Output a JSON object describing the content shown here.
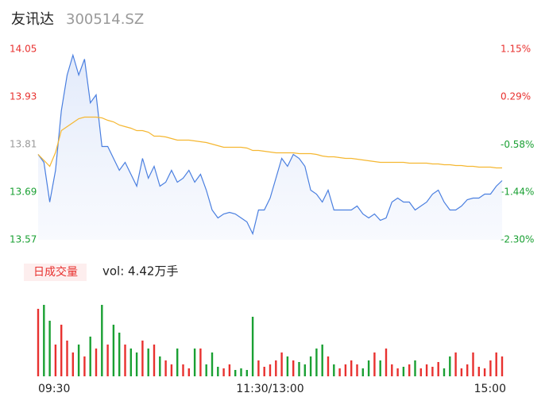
{
  "chart_data": [
    {
      "type": "line",
      "title": "友讯达",
      "subtitle": "300514.SZ",
      "x": [
        0,
        3,
        6,
        9,
        12,
        15,
        18,
        21,
        24,
        27,
        30,
        33,
        36,
        39,
        42,
        45,
        48,
        51,
        54,
        57,
        60,
        63,
        66,
        69,
        72,
        75,
        78,
        81,
        84,
        87,
        90,
        93,
        96,
        99,
        102,
        105,
        108,
        111,
        114,
        117,
        120,
        123,
        126,
        129,
        132,
        135,
        138,
        141,
        144,
        147,
        150,
        153,
        156,
        159,
        162,
        165,
        168,
        171,
        174,
        177,
        180,
        183,
        186,
        189,
        192,
        195,
        198,
        201,
        204,
        207,
        210,
        213,
        216,
        219,
        222,
        225,
        228,
        231,
        234,
        237,
        240
      ],
      "xlim": [
        0,
        240
      ],
      "ylim": [
        13.57,
        14.05
      ],
      "yticks": [
        13.57,
        13.69,
        13.81,
        13.93,
        14.05
      ],
      "y2lim": [
        -2.3,
        1.15
      ],
      "y2ticks": [
        {
          "value": -2.3,
          "label": "-2.30%"
        },
        {
          "value": -1.44,
          "label": "-1.44%"
        },
        {
          "value": -0.58,
          "label": "-0.58%"
        },
        {
          "value": 0.29,
          "label": "0.29%"
        },
        {
          "value": 1.15,
          "label": "1.15%"
        }
      ],
      "up_color": "#e8312f",
      "down_color": "#1aa033",
      "flat_color": "#999999",
      "series": [
        {
          "color": "#4a7fe0",
          "values": [
            13.785,
            13.765,
            13.665,
            13.745,
            13.895,
            13.985,
            14.035,
            13.985,
            14.025,
            13.915,
            13.935,
            13.805,
            13.805,
            13.775,
            13.745,
            13.765,
            13.735,
            13.705,
            13.775,
            13.725,
            13.755,
            13.705,
            13.715,
            13.745,
            13.715,
            13.725,
            13.745,
            13.715,
            13.735,
            13.695,
            13.645,
            13.625,
            13.635,
            13.639,
            13.635,
            13.625,
            13.615,
            13.585,
            13.645,
            13.645,
            13.675,
            13.725,
            13.775,
            13.755,
            13.785,
            13.775,
            13.755,
            13.695,
            13.685,
            13.665,
            13.695,
            13.645,
            13.645,
            13.645,
            13.645,
            13.655,
            13.635,
            13.625,
            13.635,
            13.619,
            13.625,
            13.665,
            13.675,
            13.665,
            13.665,
            13.645,
            13.655,
            13.665,
            13.685,
            13.695,
            13.665,
            13.645,
            13.645,
            13.655,
            13.671,
            13.675,
            13.675,
            13.685,
            13.685,
            13.705,
            13.719
          ]
        },
        {
          "color": "#f5b731",
          "values": [
            13.785,
            13.77,
            13.755,
            13.79,
            13.845,
            13.855,
            13.865,
            13.875,
            13.879,
            13.879,
            13.879,
            13.877,
            13.871,
            13.867,
            13.859,
            13.855,
            13.851,
            13.845,
            13.845,
            13.841,
            13.831,
            13.831,
            13.829,
            13.825,
            13.821,
            13.821,
            13.821,
            13.819,
            13.817,
            13.815,
            13.811,
            13.807,
            13.803,
            13.803,
            13.803,
            13.803,
            13.801,
            13.795,
            13.795,
            13.793,
            13.791,
            13.789,
            13.789,
            13.789,
            13.789,
            13.787,
            13.787,
            13.787,
            13.785,
            13.781,
            13.779,
            13.779,
            13.777,
            13.775,
            13.775,
            13.773,
            13.771,
            13.769,
            13.767,
            13.765,
            13.765,
            13.765,
            13.765,
            13.765,
            13.763,
            13.763,
            13.763,
            13.763,
            13.761,
            13.761,
            13.759,
            13.759,
            13.757,
            13.757,
            13.755,
            13.755,
            13.753,
            13.753,
            13.753,
            13.751,
            13.751
          ]
        }
      ]
    },
    {
      "type": "bar",
      "title": "日成交量",
      "annotation": "vol: 4.42万手",
      "x": [
        0,
        3,
        6,
        9,
        12,
        15,
        18,
        21,
        24,
        27,
        30,
        33,
        36,
        39,
        42,
        45,
        48,
        51,
        54,
        57,
        60,
        63,
        66,
        69,
        72,
        75,
        78,
        81,
        84,
        87,
        90,
        93,
        96,
        99,
        102,
        105,
        108,
        111,
        114,
        117,
        120,
        123,
        126,
        129,
        132,
        135,
        138,
        141,
        144,
        147,
        150,
        153,
        156,
        159,
        162,
        165,
        168,
        171,
        174,
        177,
        180,
        183,
        186,
        189,
        192,
        195,
        198,
        201,
        204,
        207,
        210,
        213,
        216,
        219,
        222,
        225,
        228,
        231,
        234,
        237,
        240
      ],
      "xlim": [
        0,
        240
      ],
      "xticks": [
        {
          "value": 0,
          "label": "09:30"
        },
        {
          "value": 120,
          "label": "11:30/13:00"
        },
        {
          "value": 240,
          "label": "15:00"
        }
      ],
      "ylim": [
        0,
        1000
      ],
      "up_color": "#e8312f",
      "down_color": "#1aa033",
      "values": [
        850,
        900,
        700,
        400,
        650,
        450,
        300,
        400,
        250,
        500,
        350,
        900,
        400,
        650,
        550,
        400,
        350,
        300,
        450,
        350,
        400,
        250,
        200,
        150,
        350,
        150,
        100,
        350,
        350,
        150,
        300,
        120,
        100,
        150,
        80,
        100,
        80,
        750,
        200,
        120,
        150,
        200,
        300,
        250,
        200,
        180,
        150,
        250,
        350,
        400,
        250,
        150,
        100,
        150,
        200,
        150,
        100,
        200,
        300,
        200,
        350,
        150,
        100,
        120,
        150,
        200,
        100,
        150,
        120,
        180,
        100,
        250,
        300,
        100,
        150,
        300,
        120,
        100,
        200,
        300,
        250
      ]
    }
  ]
}
